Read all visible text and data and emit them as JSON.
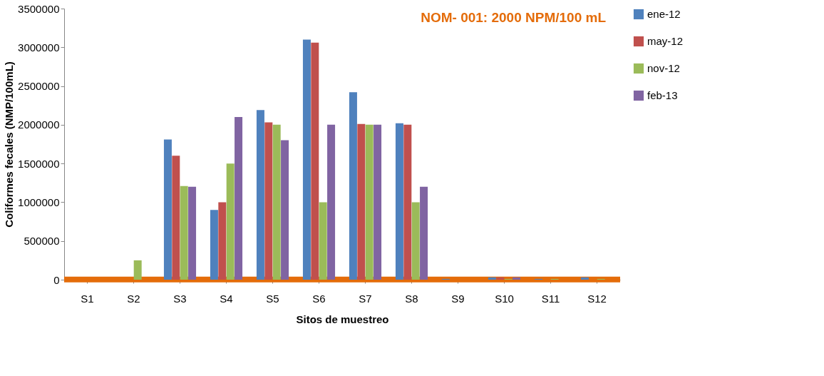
{
  "chart_data": {
    "type": "bar",
    "xlabel": "Sitos de muestreo",
    "ylabel": "Coliformes fecales (NMP/100mL)",
    "categories": [
      "S1",
      "S2",
      "S3",
      "S4",
      "S5",
      "S6",
      "S7",
      "S8",
      "S9",
      "S10",
      "S11",
      "S12"
    ],
    "series": [
      {
        "name": "ene-12",
        "color": "#4f81bd",
        "values": [
          0,
          0,
          1810000,
          900000,
          2190000,
          3100000,
          2420000,
          2020000,
          10000,
          30000,
          10000,
          30000
        ]
      },
      {
        "name": "may-12",
        "color": "#c0504d",
        "values": [
          0,
          0,
          1600000,
          1000000,
          2030000,
          3060000,
          2010000,
          2000000,
          0,
          30000,
          0,
          0
        ]
      },
      {
        "name": "nov-12",
        "color": "#9bbb59",
        "values": [
          0,
          250000,
          1210000,
          1500000,
          2000000,
          1000000,
          2000000,
          1000000,
          0,
          10000,
          10000,
          10000
        ]
      },
      {
        "name": "feb-13",
        "color": "#8064a2",
        "values": [
          0,
          0,
          1200000,
          2100000,
          1800000,
          2000000,
          2000000,
          1200000,
          0,
          30000,
          0,
          0
        ]
      }
    ],
    "ylim": [
      0,
      3500000
    ],
    "yticks": [
      0,
      500000,
      1000000,
      1500000,
      2000000,
      2500000,
      3000000,
      3500000
    ],
    "ref_lines": [
      {
        "axis": "y",
        "value": 2000,
        "label": "NOM- 001: 2000 NPM/100 mL",
        "color": "#e46c0a"
      }
    ],
    "grid": false,
    "legend": "right"
  }
}
